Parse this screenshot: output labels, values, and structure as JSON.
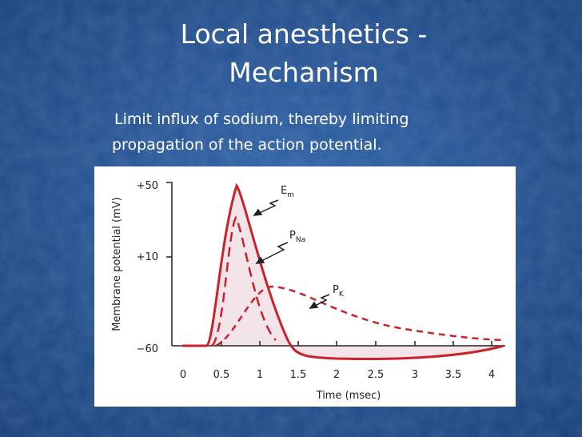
{
  "slide": {
    "title": [
      "Local anesthetics -",
      "Mechanism"
    ],
    "body": [
      "Limit influx of sodium, thereby limiting",
      "propagation of the action potential."
    ],
    "figure": {
      "y_axis_label": "Membrane potential (mV)",
      "y_tick_labels": [
        "+50",
        "+10",
        "−60"
      ],
      "x_axis_label": "Time (msec)",
      "x_tick_labels": [
        "0",
        "0.5",
        "1",
        "1.5",
        "2",
        "2.5",
        "3",
        "3.5",
        "4"
      ],
      "curve_labels": [
        {
          "symbol": "E",
          "subscript": "m"
        },
        {
          "symbol": "P",
          "subscript": "Na"
        },
        {
          "symbol": "P",
          "subscript": "K"
        }
      ]
    }
  }
}
